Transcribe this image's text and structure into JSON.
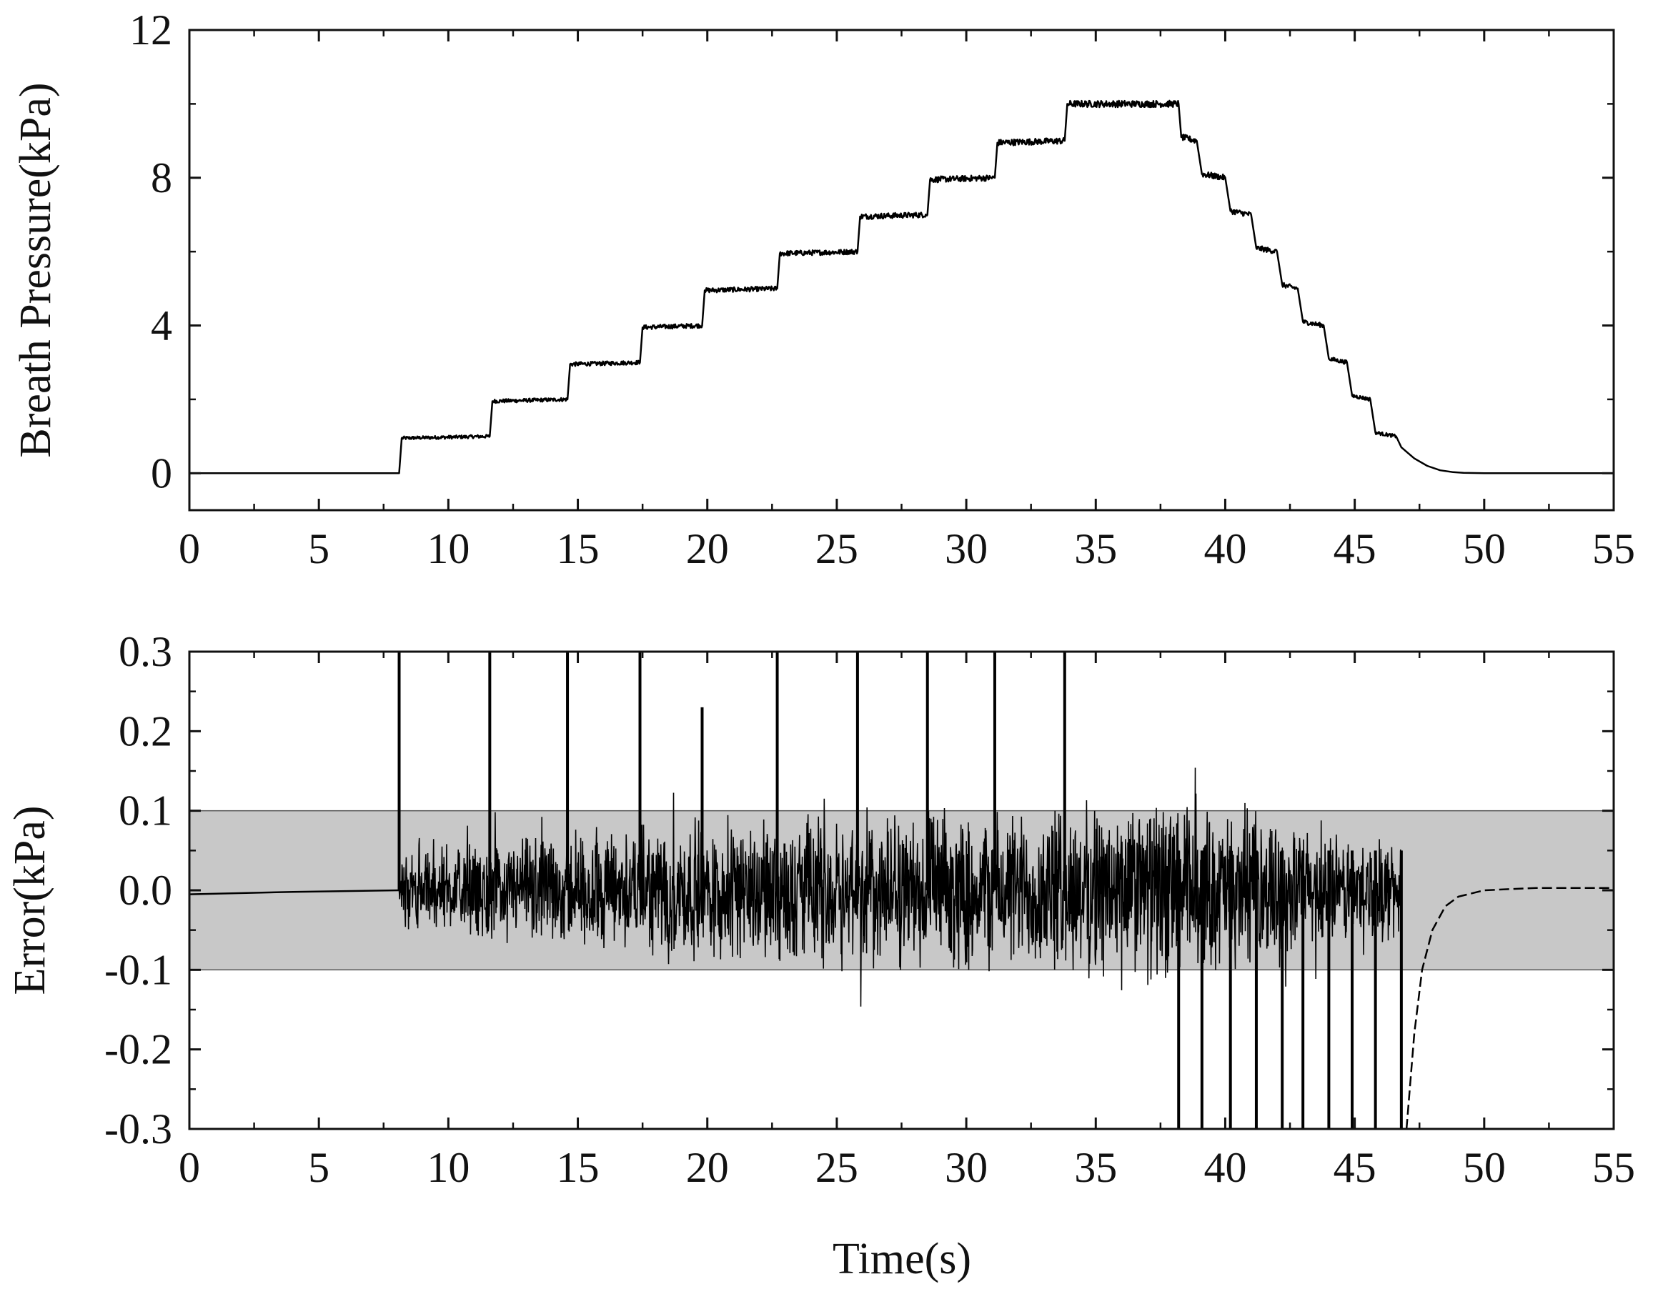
{
  "chart_data": [
    {
      "type": "line",
      "title": "",
      "xlabel": "",
      "ylabel": "Breath Pressure(kPa)",
      "xlim": [
        0,
        55
      ],
      "ylim": [
        -1,
        12
      ],
      "xticks": [
        "0",
        "5",
        "10",
        "15",
        "20",
        "25",
        "30",
        "35",
        "40",
        "45",
        "50",
        "55"
      ],
      "yticks": [
        "0",
        "4",
        "8",
        "12"
      ],
      "grid": false,
      "legend": "none",
      "color": "#000000",
      "series": [
        {
          "x": [
            0,
            8.1,
            8.2,
            11.6,
            11.7,
            14.6,
            14.7,
            17.4,
            17.5,
            19.8,
            19.9,
            22.7,
            22.8,
            25.8,
            25.9,
            28.5,
            28.6,
            31.1,
            31.2,
            33.8,
            33.9,
            38.2,
            38.3,
            38.9,
            39.1,
            40.0,
            40.2,
            41.0,
            41.2,
            42.0,
            42.2,
            42.8,
            43.0,
            43.8,
            44.0,
            44.7,
            44.9,
            45.6,
            45.8,
            46.6,
            46.8,
            47.3,
            47.8,
            48.3,
            48.8,
            49.2,
            50,
            55
          ],
          "y": [
            0,
            0,
            0.95,
            1.0,
            1.95,
            2.0,
            2.95,
            3.0,
            3.95,
            4.0,
            4.95,
            5.0,
            5.95,
            6.0,
            6.95,
            7.0,
            7.95,
            8.0,
            8.95,
            9.0,
            10.0,
            10.0,
            9.1,
            9.0,
            8.1,
            8.0,
            7.1,
            7.0,
            6.1,
            6.0,
            5.1,
            5.0,
            4.1,
            4.0,
            3.1,
            3.0,
            2.1,
            2.0,
            1.1,
            1.0,
            0.7,
            0.4,
            0.2,
            0.08,
            0.03,
            0.01,
            0,
            0
          ]
        }
      ]
    },
    {
      "type": "line",
      "title": "",
      "xlabel": "Time(s)",
      "ylabel": "Error(kPa)",
      "xlim": [
        0,
        55
      ],
      "ylim": [
        -0.3,
        0.3
      ],
      "xticks": [
        "0",
        "5",
        "10",
        "15",
        "20",
        "25",
        "30",
        "35",
        "40",
        "45",
        "50",
        "55"
      ],
      "yticks": [
        "-0.3",
        "-0.2",
        "-0.1",
        "0.0",
        "0.1",
        "0.2",
        "0.3"
      ],
      "grid": false,
      "legend": "none",
      "band": {
        "y0": -0.1,
        "y1": 0.1,
        "color": "#c8c8c8"
      },
      "color": "#000000",
      "step_times": [
        8.1,
        11.6,
        14.6,
        17.4,
        19.8,
        22.7,
        25.8,
        28.5,
        31.1,
        33.8
      ],
      "step_peaks": [
        0.3,
        0.3,
        0.3,
        0.3,
        0.23,
        0.3,
        0.3,
        0.3,
        0.3,
        0.3
      ],
      "descent_times": [
        38.2,
        39.1,
        40.2,
        41.2,
        42.2,
        43.0,
        44.0,
        44.9,
        45.8,
        46.8
      ],
      "noise_envelope": {
        "x": [
          8.1,
          11.6,
          14.6,
          17.4,
          19.8,
          22.7,
          25.8,
          28.5,
          31.1,
          33.8,
          38.2,
          40.0,
          42.0,
          44.0,
          46.8
        ],
        "amplitude": [
          0.05,
          0.07,
          0.08,
          0.09,
          0.1,
          0.1,
          0.11,
          0.11,
          0.11,
          0.12,
          0.13,
          0.11,
          0.1,
          0.08,
          0.07
        ]
      },
      "tail": {
        "x": [
          47.0,
          47.3,
          47.6,
          48.0,
          48.5,
          49.0,
          50.0,
          52.0,
          55.0
        ],
        "y": [
          -0.3,
          -0.18,
          -0.1,
          -0.05,
          -0.02,
          -0.008,
          0.0,
          0.003,
          0.003
        ]
      },
      "lead": {
        "x": [
          0,
          4,
          8.1
        ],
        "y": [
          -0.005,
          -0.002,
          0.0
        ]
      }
    }
  ]
}
